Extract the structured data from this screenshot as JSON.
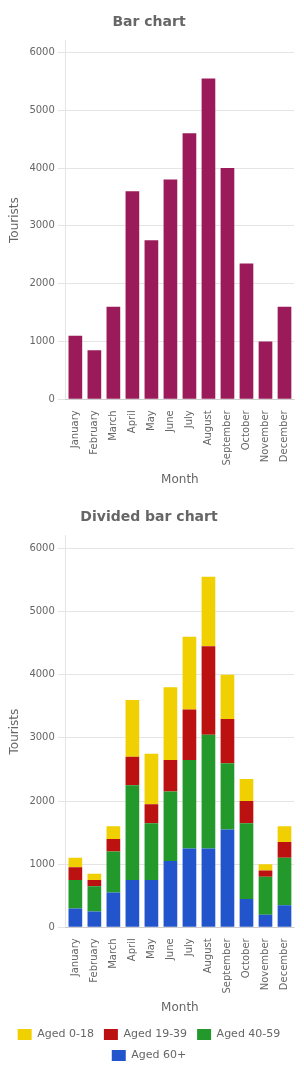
{
  "chart_data": [
    {
      "type": "bar",
      "title": "Bar chart",
      "categories": [
        "January",
        "February",
        "March",
        "April",
        "May",
        "June",
        "July",
        "August",
        "September",
        "October",
        "November",
        "December"
      ],
      "values": [
        1100,
        850,
        1600,
        3600,
        2750,
        3800,
        4600,
        5550,
        4000,
        2350,
        1000,
        1600
      ],
      "color": "#9b1b5a",
      "xlabel": "Month",
      "ylabel": "Tourists",
      "ylim": [
        0,
        6200
      ],
      "yticks": [
        0,
        1000,
        2000,
        3000,
        4000,
        5000,
        6000
      ],
      "grid": true
    },
    {
      "type": "bar",
      "title": "Divided bar chart",
      "categories": [
        "January",
        "February",
        "March",
        "April",
        "May",
        "June",
        "July",
        "August",
        "September",
        "October",
        "November",
        "December"
      ],
      "series": [
        {
          "name": "Aged 60+",
          "color": "#2255cc",
          "values": [
            300,
            250,
            550,
            750,
            750,
            1050,
            1250,
            1250,
            1550,
            450,
            200,
            350
          ]
        },
        {
          "name": "Aged 40-59",
          "color": "#22992a",
          "values": [
            450,
            400,
            650,
            1500,
            900,
            1100,
            1400,
            1800,
            1050,
            1200,
            600,
            750
          ]
        },
        {
          "name": "Aged 19-39",
          "color": "#bb1111",
          "values": [
            200,
            100,
            200,
            450,
            300,
            500,
            800,
            1400,
            700,
            350,
            100,
            250
          ]
        },
        {
          "name": "Aged 0-18",
          "color": "#f0d000",
          "values": [
            150,
            100,
            200,
            900,
            800,
            1150,
            1150,
            1100,
            700,
            350,
            100,
            250
          ]
        }
      ],
      "stacked": true,
      "xlabel": "Month",
      "ylabel": "Tourists",
      "ylim": [
        0,
        6200
      ],
      "yticks": [
        0,
        1000,
        2000,
        3000,
        4000,
        5000,
        6000
      ],
      "grid": true,
      "legend": "bottom"
    }
  ]
}
